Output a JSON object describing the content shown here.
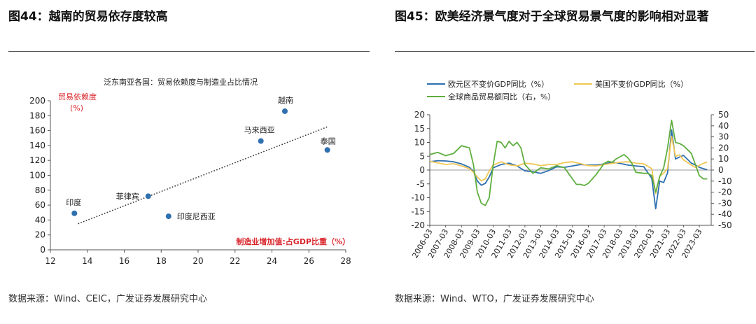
{
  "charts": [
    {
      "figure_title": "图44：越南的贸易依存度较高",
      "source": "数据来源：Wind、CEIC，广发证券发展研究中心"
    },
    {
      "figure_title": "图45：欧美经济景气度对于全球贸易景气度的影响相对显著",
      "source": "数据来源：Wind、WTO，广发证券发展研究中心"
    }
  ],
  "chart_data": [
    {
      "type": "scatter",
      "title": "泛东南亚各国：贸易依赖度与制造业占比情况",
      "ylabel": "贸易依赖度\n(%)",
      "xlabel": "制造业增加值:占GDP比重（%）",
      "xlim": [
        12,
        28
      ],
      "ylim": [
        0,
        200
      ],
      "xticks": [
        "12",
        "14",
        "16",
        "18",
        "20",
        "22",
        "24",
        "26",
        "28"
      ],
      "yticks": [
        "0",
        "20",
        "40",
        "60",
        "80",
        "100",
        "120",
        "140",
        "160",
        "180",
        "200"
      ],
      "points": [
        {
          "label": "印度",
          "x": 13.3,
          "y": 49
        },
        {
          "label": "菲律宾",
          "x": 17.3,
          "y": 72
        },
        {
          "label": "印度尼西亚",
          "x": 18.4,
          "y": 45
        },
        {
          "label": "马来西亚",
          "x": 23.4,
          "y": 146
        },
        {
          "label": "越南",
          "x": 24.7,
          "y": 186
        },
        {
          "label": "泰国",
          "x": 27.0,
          "y": 134
        }
      ],
      "trendline": {
        "x": [
          13.5,
          27.0
        ],
        "y": [
          35,
          165
        ]
      },
      "colors": {
        "points": "#2e6fae",
        "trend": "#333333",
        "annotation": "#d9262c"
      }
    },
    {
      "type": "line",
      "x_ticks": [
        "2006-03",
        "2007-03",
        "2008-03",
        "2009-03",
        "2010-03",
        "2011-03",
        "2012-03",
        "2013-03",
        "2014-03",
        "2015-03",
        "2016-03",
        "2017-03",
        "2018-03",
        "2019-03",
        "2020-03",
        "2021-03",
        "2022-03",
        "2023-03"
      ],
      "x_range": [
        2006.0,
        2023.75
      ],
      "ylim_left": [
        -20,
        20
      ],
      "ylim_right": [
        -50,
        50
      ],
      "yticks_left": [
        "-20",
        "-15",
        "-10",
        "-5",
        "0",
        "5",
        "10",
        "15",
        "20"
      ],
      "yticks_right": [
        "-50",
        "-40",
        "-30",
        "-20",
        "-10",
        "0",
        "10",
        "20",
        "30",
        "40",
        "50"
      ],
      "series": [
        {
          "name": "欧元区不变价GDP同比（%）",
          "axis": "left",
          "color": "#2e6fae",
          "points": [
            [
              2006.0,
              3
            ],
            [
              2006.5,
              3.4
            ],
            [
              2007.0,
              3.3
            ],
            [
              2007.5,
              3
            ],
            [
              2008.0,
              2.2
            ],
            [
              2008.5,
              1
            ],
            [
              2008.75,
              -0.5
            ],
            [
              2009.0,
              -4
            ],
            [
              2009.25,
              -5.5
            ],
            [
              2009.5,
              -4.8
            ],
            [
              2009.75,
              -2.5
            ],
            [
              2010.0,
              0.8
            ],
            [
              2010.5,
              2
            ],
            [
              2011.0,
              2.5
            ],
            [
              2011.5,
              1.5
            ],
            [
              2012.0,
              -0.3
            ],
            [
              2012.5,
              -0.6
            ],
            [
              2013.0,
              -1.2
            ],
            [
              2013.5,
              -0.2
            ],
            [
              2014.0,
              1.2
            ],
            [
              2014.5,
              1
            ],
            [
              2015.0,
              1.5
            ],
            [
              2015.5,
              2
            ],
            [
              2016.0,
              1.8
            ],
            [
              2016.5,
              1.8
            ],
            [
              2017.0,
              2.2
            ],
            [
              2017.5,
              2.8
            ],
            [
              2018.0,
              2.4
            ],
            [
              2018.5,
              1.8
            ],
            [
              2019.0,
              1.5
            ],
            [
              2019.5,
              1.2
            ],
            [
              2020.0,
              -3
            ],
            [
              2020.25,
              -14
            ],
            [
              2020.5,
              -4
            ],
            [
              2020.75,
              -4.5
            ],
            [
              2021.0,
              -1
            ],
            [
              2021.25,
              14.5
            ],
            [
              2021.5,
              4
            ],
            [
              2021.75,
              4.7
            ],
            [
              2022.0,
              5.3
            ],
            [
              2022.5,
              2.5
            ],
            [
              2022.75,
              1.8
            ],
            [
              2023.0,
              1
            ],
            [
              2023.25,
              0.5
            ],
            [
              2023.5,
              0.1
            ]
          ]
        },
        {
          "name": "美国不变价GDP同比（%）",
          "axis": "left",
          "color": "#f0c855",
          "points": [
            [
              2006.0,
              3.2
            ],
            [
              2006.5,
              2.6
            ],
            [
              2007.0,
              2
            ],
            [
              2007.5,
              2.3
            ],
            [
              2008.0,
              1.5
            ],
            [
              2008.5,
              0.5
            ],
            [
              2008.75,
              -0.8
            ],
            [
              2009.0,
              -2.5
            ],
            [
              2009.25,
              -3.9
            ],
            [
              2009.5,
              -3.2
            ],
            [
              2009.75,
              -0.3
            ],
            [
              2010.0,
              1.8
            ],
            [
              2010.5,
              3
            ],
            [
              2011.0,
              1.9
            ],
            [
              2011.5,
              1.5
            ],
            [
              2012.0,
              2.5
            ],
            [
              2012.5,
              2.2
            ],
            [
              2013.0,
              1.6
            ],
            [
              2013.5,
              2
            ],
            [
              2014.0,
              2
            ],
            [
              2014.5,
              2.7
            ],
            [
              2015.0,
              3
            ],
            [
              2015.5,
              2.3
            ],
            [
              2016.0,
              1.6
            ],
            [
              2016.5,
              1.5
            ],
            [
              2017.0,
              2
            ],
            [
              2017.5,
              2.4
            ],
            [
              2018.0,
              2.8
            ],
            [
              2018.5,
              3
            ],
            [
              2019.0,
              2.5
            ],
            [
              2019.5,
              2.2
            ],
            [
              2020.0,
              0.5
            ],
            [
              2020.25,
              -8.5
            ],
            [
              2020.5,
              -2.3
            ],
            [
              2020.75,
              -1.1
            ],
            [
              2021.0,
              0.5
            ],
            [
              2021.25,
              12.2
            ],
            [
              2021.5,
              5
            ],
            [
              2021.75,
              5.5
            ],
            [
              2022.0,
              3.7
            ],
            [
              2022.5,
              1.8
            ],
            [
              2022.75,
              0.9
            ],
            [
              2023.0,
              1.7
            ],
            [
              2023.25,
              2.4
            ],
            [
              2023.5,
              2.9
            ]
          ]
        },
        {
          "name": "全球商品贸易额同比（右，%）",
          "axis": "right",
          "color": "#5fae3f",
          "points": [
            [
              2006.0,
              14
            ],
            [
              2006.5,
              16
            ],
            [
              2007.0,
              13
            ],
            [
              2007.5,
              15
            ],
            [
              2008.0,
              22
            ],
            [
              2008.5,
              20
            ],
            [
              2008.75,
              5
            ],
            [
              2009.0,
              -20
            ],
            [
              2009.25,
              -30
            ],
            [
              2009.5,
              -32
            ],
            [
              2009.75,
              -25
            ],
            [
              2010.0,
              5
            ],
            [
              2010.25,
              26
            ],
            [
              2010.5,
              25
            ],
            [
              2010.75,
              20
            ],
            [
              2011.0,
              26
            ],
            [
              2011.25,
              22
            ],
            [
              2011.5,
              25
            ],
            [
              2011.75,
              20
            ],
            [
              2012.0,
              5
            ],
            [
              2012.5,
              -3
            ],
            [
              2013.0,
              2
            ],
            [
              2013.5,
              1
            ],
            [
              2014.0,
              4
            ],
            [
              2014.5,
              2
            ],
            [
              2015.0,
              -8
            ],
            [
              2015.25,
              -13
            ],
            [
              2015.5,
              -13
            ],
            [
              2015.75,
              -14
            ],
            [
              2016.0,
              -12
            ],
            [
              2016.5,
              -4
            ],
            [
              2017.0,
              6
            ],
            [
              2017.25,
              8
            ],
            [
              2017.5,
              7
            ],
            [
              2017.75,
              10
            ],
            [
              2018.0,
              12
            ],
            [
              2018.25,
              14
            ],
            [
              2018.5,
              11
            ],
            [
              2018.75,
              6
            ],
            [
              2019.0,
              -2
            ],
            [
              2019.5,
              -3
            ],
            [
              2019.75,
              -3
            ],
            [
              2020.0,
              -5
            ],
            [
              2020.25,
              -20
            ],
            [
              2020.5,
              -6
            ],
            [
              2020.75,
              2
            ],
            [
              2021.0,
              20
            ],
            [
              2021.25,
              45
            ],
            [
              2021.5,
              25
            ],
            [
              2021.75,
              24
            ],
            [
              2022.0,
              22
            ],
            [
              2022.5,
              15
            ],
            [
              2022.75,
              5
            ],
            [
              2023.0,
              -5
            ],
            [
              2023.25,
              -8
            ],
            [
              2023.5,
              -8
            ]
          ]
        }
      ],
      "legend_placement": "top-left",
      "zero_line": true
    }
  ]
}
